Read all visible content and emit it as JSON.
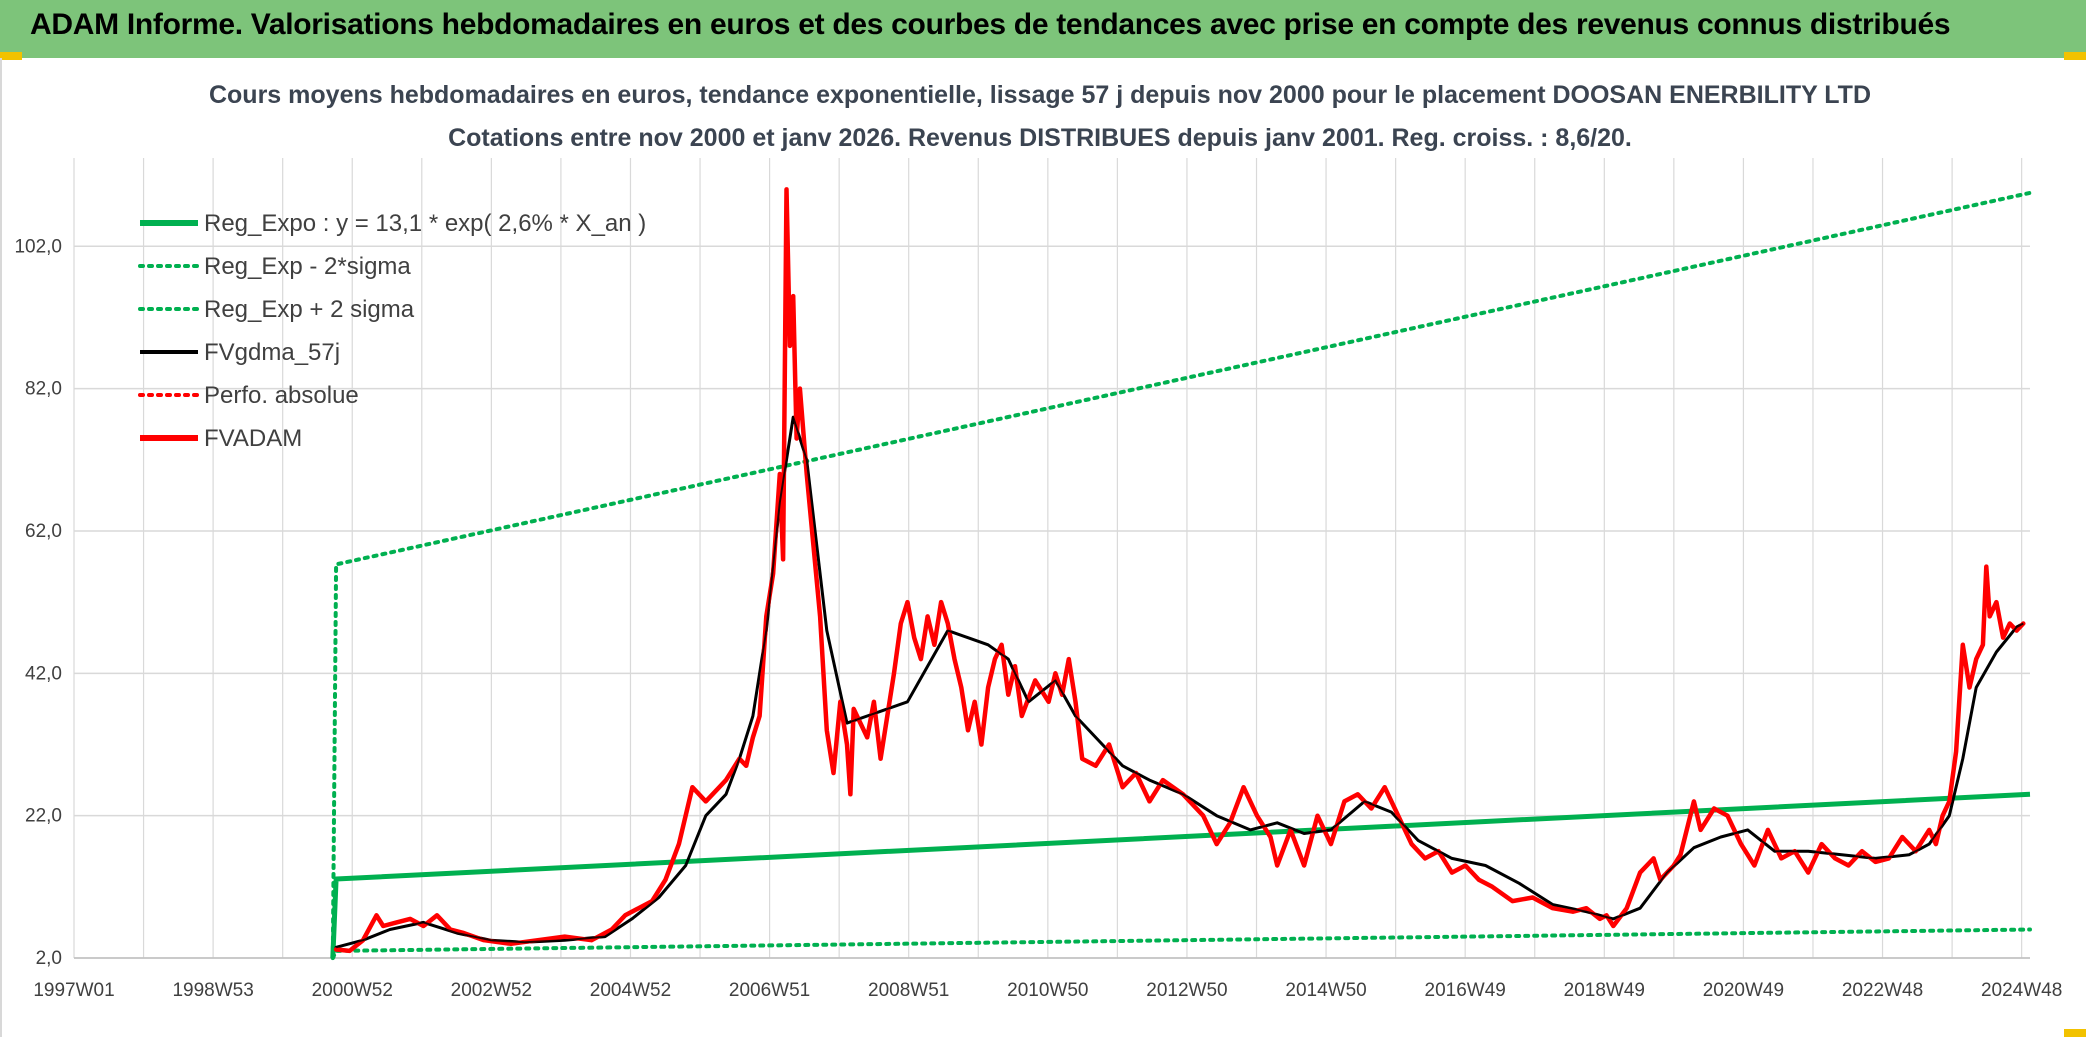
{
  "banner": {
    "title": "ADAM Informe. Valorisations hebdomadaires en euros et des courbes de tendances avec prise en compte des revenus connus distribués"
  },
  "colors": {
    "banner_bg": "#7dc47a",
    "reg_expo": "#00b050",
    "gdma": "#000000",
    "fvadam": "#ff0000",
    "grid": "#d9d9d9"
  },
  "chart_data": {
    "type": "line",
    "title_line1": "Cours moyens hebdomadaires en euros, tendance exponentielle, lissage 57 j depuis nov 2000 pour le placement DOOSAN ENERBILITY LTD",
    "title_line2": "Cotations entre nov 2000 et janv 2026. Revenus DISTRIBUES depuis janv 2001. Reg. croiss. : 8,6/20.",
    "x_tick_labels": [
      "1997W01",
      "1998W53",
      "2000W52",
      "2002W52",
      "2004W52",
      "2006W51",
      "2008W51",
      "2010W50",
      "2012W50",
      "2014W50",
      "2016W49",
      "2018W49",
      "2020W49",
      "2022W48",
      "2024W48"
    ],
    "y_tick_labels": [
      "2,0",
      "22,0",
      "42,0",
      "62,0",
      "82,0",
      "102,0"
    ],
    "y_ticks": [
      2,
      22,
      42,
      62,
      82,
      102
    ],
    "xlim": [
      1997.0,
      2026.1
    ],
    "ylim": [
      2,
      113
    ],
    "grid": true,
    "legend_position": "top-left",
    "legend": [
      {
        "label": "Reg_Expo : y = 13,1 * exp( 2,6% *  X_an )",
        "style": "solid-thick",
        "color": "#00b050"
      },
      {
        "label": "Reg_Exp - 2*sigma",
        "style": "dotted",
        "color": "#00b050"
      },
      {
        "label": "Reg_Exp + 2 sigma",
        "style": "dotted",
        "color": "#00b050"
      },
      {
        "label": "FVgdma_57j",
        "style": "solid",
        "color": "#000000"
      },
      {
        "label": "Perfo. absolue",
        "style": "dotted",
        "color": "#ff0000"
      },
      {
        "label": "FVADAM",
        "style": "solid-thick",
        "color": "#ff0000"
      }
    ],
    "series": [
      {
        "name": "Reg_Expo : y = 13,1 * exp( 2,6% *  X_an )",
        "x": [
          2000.85,
          2000.9,
          2026.1
        ],
        "y": [
          2.0,
          13.1,
          25.0
        ]
      },
      {
        "name": "Reg_Exp - 2*sigma",
        "x": [
          2000.85,
          2000.9,
          2026.1
        ],
        "y": [
          2.0,
          3.0,
          6.0
        ]
      },
      {
        "name": "Reg_Exp + 2 sigma",
        "x": [
          2000.85,
          2000.9,
          2026.1
        ],
        "y": [
          2.0,
          57.3,
          109.5
        ]
      },
      {
        "name": "FVgdma_57j",
        "x": [
          2000.9,
          2001.3,
          2001.7,
          2002.2,
          2002.7,
          2003.2,
          2003.7,
          2004.3,
          2004.9,
          2005.3,
          2005.7,
          2006.1,
          2006.4,
          2006.7,
          2006.9,
          2007.1,
          2007.3,
          2007.5,
          2007.7,
          2007.9,
          2008.2,
          2008.5,
          2008.8,
          2009.1,
          2009.4,
          2009.7,
          2010.0,
          2010.3,
          2010.6,
          2010.9,
          2011.2,
          2011.6,
          2011.9,
          2012.3,
          2012.6,
          2013.0,
          2013.5,
          2014.0,
          2014.5,
          2014.9,
          2015.3,
          2015.7,
          2016.2,
          2016.6,
          2017.0,
          2017.5,
          2018.0,
          2018.5,
          2019.0,
          2019.5,
          2019.9,
          2020.3,
          2020.7,
          2021.1,
          2021.5,
          2021.9,
          2022.3,
          2022.8,
          2023.3,
          2023.8,
          2024.3,
          2024.6,
          2024.9,
          2025.1,
          2025.3,
          2025.6,
          2025.9,
          2026.0
        ],
        "y": [
          3.5,
          4.5,
          6.0,
          7.0,
          5.5,
          4.5,
          4.2,
          4.5,
          5.0,
          7.5,
          10.5,
          15.0,
          22.0,
          25.0,
          30.0,
          36.0,
          48.0,
          66.0,
          78.0,
          72.0,
          48.0,
          35.0,
          36.0,
          37.0,
          38.0,
          43.0,
          48.0,
          47.0,
          46.0,
          44.0,
          38.0,
          41.0,
          36.0,
          32.0,
          29.0,
          27.0,
          25.0,
          22.0,
          20.0,
          21.0,
          19.5,
          20.0,
          24.0,
          22.5,
          18.5,
          16.0,
          15.0,
          12.5,
          9.5,
          8.5,
          7.5,
          9.0,
          14.0,
          17.5,
          19.0,
          20.0,
          17.0,
          17.0,
          16.5,
          16.0,
          16.5,
          18.0,
          22.0,
          30.0,
          40.0,
          45.0,
          48.5,
          49.0
        ]
      },
      {
        "name": "FVADAM",
        "x": [
          2000.9,
          2001.1,
          2001.3,
          2001.5,
          2001.6,
          2001.8,
          2002.0,
          2002.2,
          2002.4,
          2002.6,
          2002.8,
          2003.1,
          2003.5,
          2003.9,
          2004.3,
          2004.7,
          2005.0,
          2005.2,
          2005.4,
          2005.6,
          2005.8,
          2006.0,
          2006.2,
          2006.4,
          2006.6,
          2006.7,
          2006.9,
          2007.0,
          2007.1,
          2007.2,
          2007.3,
          2007.4,
          2007.5,
          2007.55,
          2007.6,
          2007.65,
          2007.7,
          2007.75,
          2007.8,
          2007.9,
          2008.0,
          2008.1,
          2008.2,
          2008.3,
          2008.4,
          2008.5,
          2008.55,
          2008.6,
          2008.7,
          2008.8,
          2008.9,
          2009.0,
          2009.1,
          2009.2,
          2009.3,
          2009.4,
          2009.5,
          2009.6,
          2009.7,
          2009.8,
          2009.9,
          2010.0,
          2010.1,
          2010.2,
          2010.3,
          2010.4,
          2010.5,
          2010.6,
          2010.7,
          2010.8,
          2010.9,
          2011.0,
          2011.1,
          2011.3,
          2011.5,
          2011.6,
          2011.7,
          2011.8,
          2011.9,
          2012.0,
          2012.2,
          2012.4,
          2012.6,
          2012.8,
          2013.0,
          2013.2,
          2013.5,
          2013.8,
          2014.0,
          2014.2,
          2014.4,
          2014.6,
          2014.8,
          2014.9,
          2015.1,
          2015.3,
          2015.5,
          2015.7,
          2015.9,
          2016.1,
          2016.3,
          2016.5,
          2016.7,
          2016.9,
          2017.1,
          2017.3,
          2017.5,
          2017.7,
          2017.9,
          2018.1,
          2018.4,
          2018.7,
          2019.0,
          2019.3,
          2019.5,
          2019.7,
          2019.8,
          2019.9,
          2020.1,
          2020.3,
          2020.5,
          2020.6,
          2020.8,
          2020.9,
          2021.1,
          2021.2,
          2021.4,
          2021.6,
          2021.8,
          2022.0,
          2022.2,
          2022.4,
          2022.6,
          2022.8,
          2023.0,
          2023.2,
          2023.4,
          2023.6,
          2023.8,
          2024.0,
          2024.2,
          2024.4,
          2024.6,
          2024.7,
          2024.8,
          2024.9,
          2025.0,
          2025.1,
          2025.2,
          2025.3,
          2025.4,
          2025.45,
          2025.5,
          2025.6,
          2025.7,
          2025.8,
          2025.9,
          2026.0
        ],
        "y": [
          3.2,
          3.0,
          4.5,
          8.0,
          6.5,
          7.0,
          7.5,
          6.5,
          8.0,
          6.0,
          5.5,
          4.5,
          4.0,
          4.5,
          5.0,
          4.5,
          6.0,
          8.0,
          9.0,
          10.0,
          13.0,
          18.0,
          26.0,
          24.0,
          26.0,
          27.0,
          30.0,
          29.0,
          33.0,
          36.0,
          50.0,
          56.0,
          70.0,
          58.0,
          110.0,
          88.0,
          95.0,
          75.0,
          82.0,
          70.0,
          60.0,
          50.0,
          34.0,
          28.0,
          38.0,
          32.0,
          25.0,
          37.0,
          35.0,
          33.0,
          38.0,
          30.0,
          36.0,
          42.0,
          49.0,
          52.0,
          47.0,
          44.0,
          50.0,
          46.0,
          52.0,
          49.0,
          44.0,
          40.0,
          34.0,
          38.0,
          32.0,
          40.0,
          44.0,
          46.0,
          39.0,
          43.0,
          36.0,
          41.0,
          38.0,
          42.0,
          39.0,
          44.0,
          38.0,
          30.0,
          29.0,
          32.0,
          26.0,
          28.0,
          24.0,
          27.0,
          25.0,
          22.0,
          18.0,
          21.0,
          26.0,
          22.0,
          19.0,
          15.0,
          20.0,
          15.0,
          22.0,
          18.0,
          24.0,
          25.0,
          23.0,
          26.0,
          22.0,
          18.0,
          16.0,
          17.0,
          14.0,
          15.0,
          13.0,
          12.0,
          10.0,
          10.5,
          9.0,
          8.5,
          9.0,
          7.5,
          8.0,
          6.5,
          9.0,
          14.0,
          16.0,
          13.0,
          15.0,
          16.5,
          24.0,
          20.0,
          23.0,
          22.0,
          18.0,
          15.0,
          20.0,
          16.0,
          17.0,
          14.0,
          18.0,
          16.0,
          15.0,
          17.0,
          15.5,
          16.0,
          19.0,
          17.0,
          20.0,
          18.0,
          22.0,
          24.0,
          31.0,
          46.0,
          40.0,
          44.0,
          46.0,
          57.0,
          50.0,
          52.0,
          47.0,
          49.0,
          48.0,
          49.0
        ]
      }
    ]
  }
}
